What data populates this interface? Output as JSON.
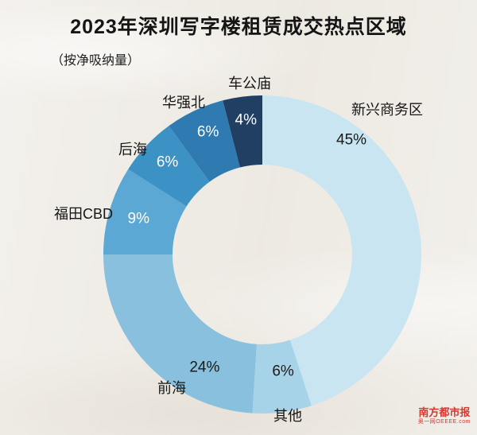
{
  "title": "2023年深圳写字楼租赁成交热点区域",
  "subtitle": "（按净吸纳量）",
  "chart_data": {
    "type": "pie",
    "donut": true,
    "unit": "%",
    "start_angle_deg": 0,
    "direction": "clockwise",
    "title": "2023年深圳写字楼租赁成交热点区域（按净吸纳量）",
    "slices": [
      {
        "name": "新兴商务区",
        "value": 45,
        "color": "#c9e5f2",
        "label_color": "#1a1a1a"
      },
      {
        "name": "其他",
        "value": 6,
        "color": "#a7d3e9",
        "label_color": "#1a1a1a"
      },
      {
        "name": "前海",
        "value": 24,
        "color": "#88c0de",
        "label_color": "#1a1a1a"
      },
      {
        "name": "福田CBD",
        "value": 9,
        "color": "#5aa8d3",
        "label_color": "#ffffff"
      },
      {
        "name": "后海",
        "value": 6,
        "color": "#3d92c5",
        "label_color": "#ffffff"
      },
      {
        "name": "华强北",
        "value": 6,
        "color": "#2e7ab1",
        "label_color": "#ffffff"
      },
      {
        "name": "车公庙",
        "value": 4,
        "color": "#213f63",
        "label_color": "#ffffff"
      }
    ]
  },
  "branding": {
    "newspaper": "南方都市报",
    "site": "奥一网OEEEE.com",
    "color": "#d6372e"
  }
}
